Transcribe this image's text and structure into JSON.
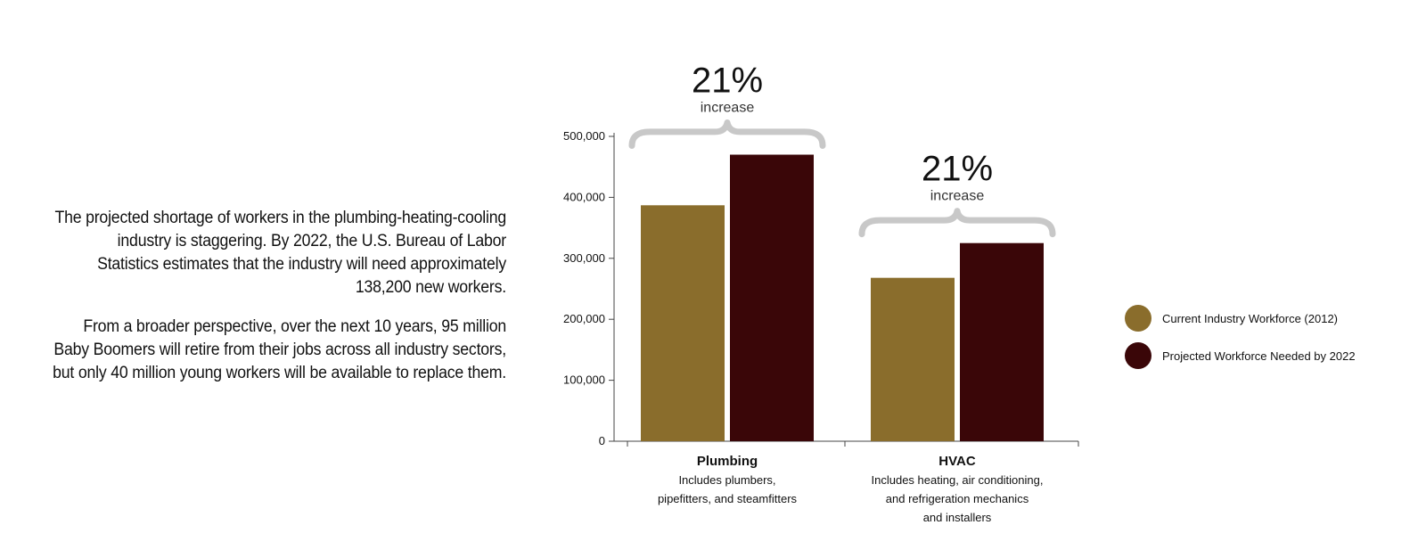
{
  "intro": {
    "paragraph1": "The projected shortage of workers in the plumbing-heating-cooling industry is staggering. By 2022, the U.S. Bureau of Labor Statistics estimates that the industry will need approximately 138,200 new workers.",
    "paragraph2": "From a broader perspective, over the next 10 years, 95 million Baby Boomers will retire from their jobs across all industry sectors, but only 40 million young workers will be available to replace them."
  },
  "chart_data": {
    "type": "bar",
    "categories": [
      "Plumbing",
      "HVAC"
    ],
    "category_descriptions": [
      [
        "Includes plumbers,",
        "pipefitters, and steamfitters"
      ],
      [
        "Includes heating, air conditioning,",
        "and refrigeration mechanics",
        "and installers"
      ]
    ],
    "series": [
      {
        "name": "Current Industry Workforce (2012)",
        "values": [
          387000,
          268000
        ],
        "color": "#8a6d2c"
      },
      {
        "name": "Projected Workforce Needed by 2022",
        "values": [
          470000,
          325000
        ],
        "color": "#3a0608"
      }
    ],
    "ylim": [
      0,
      500000
    ],
    "yticks": [
      "0",
      "100,000",
      "200,000",
      "300,000",
      "400,000",
      "500,000"
    ],
    "annotations": [
      {
        "value": "21%",
        "label": "increase"
      },
      {
        "value": "21%",
        "label": "increase"
      }
    ],
    "legend_position": "right",
    "grid": false
  }
}
